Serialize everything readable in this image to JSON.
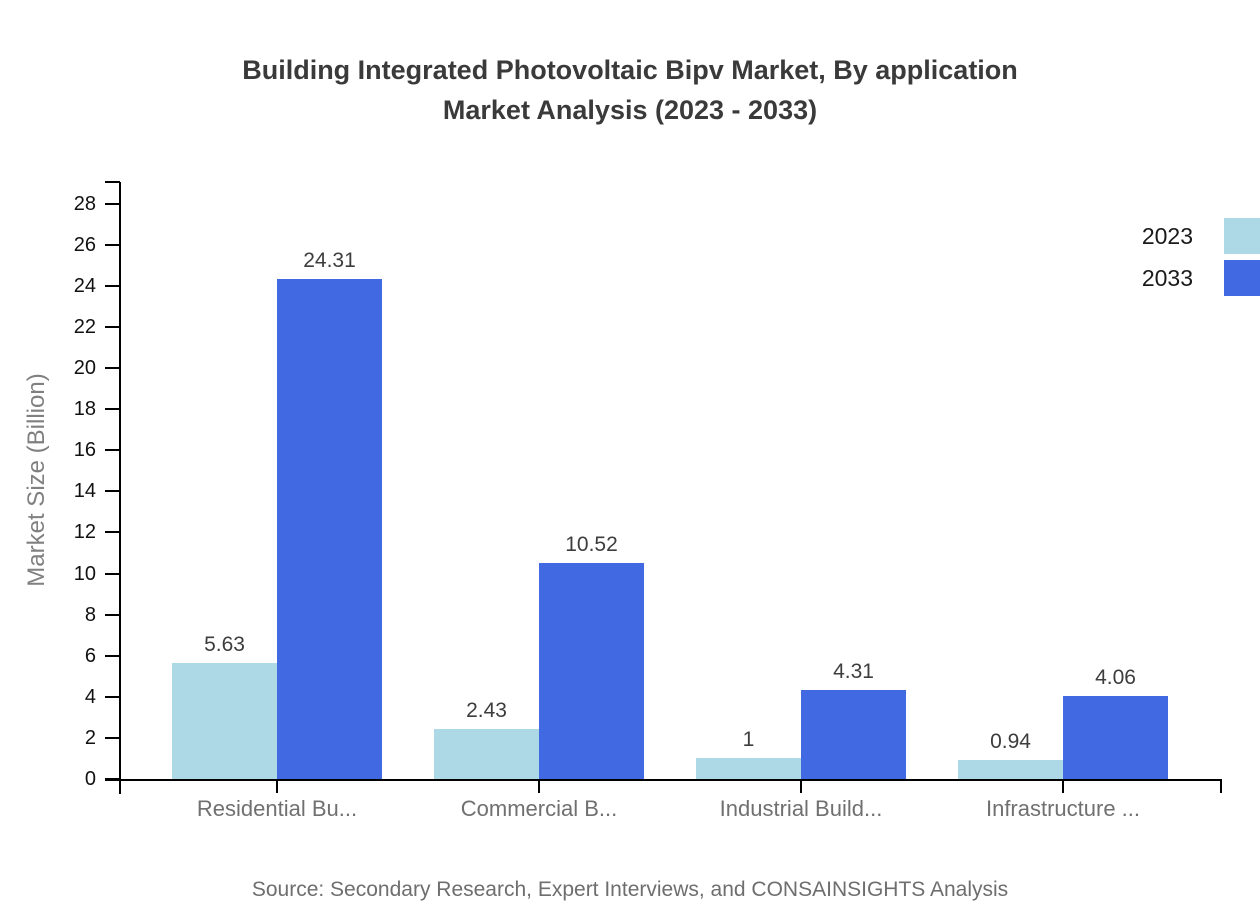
{
  "title": {
    "line1": "Building Integrated Photovoltaic Bipv Market, By application",
    "line2": "Market Analysis (2023 - 2033)"
  },
  "source_note": "Source: Secondary Research, Expert Interviews, and CONSAINSIGHTS Analysis",
  "chart_data": {
    "type": "bar",
    "title": "Building Integrated Photovoltaic Bipv Market, By application Market Analysis (2023 - 2033)",
    "categories": [
      "Residential Bu...",
      "Commercial B...",
      "Industrial Build...",
      "Infrastructure ..."
    ],
    "series": [
      {
        "name": "2023",
        "color": "#add8e6",
        "values": [
          5.63,
          2.43,
          1,
          0.94
        ]
      },
      {
        "name": "2033",
        "color": "#4169e1",
        "values": [
          24.31,
          10.52,
          4.31,
          4.06
        ]
      }
    ],
    "xlabel": "",
    "ylabel": "Market Size (Billion)",
    "ylim": [
      0,
      29
    ],
    "yticks": [
      0,
      2,
      4,
      6,
      8,
      10,
      12,
      14,
      16,
      18,
      20,
      22,
      24,
      26,
      28
    ],
    "grid": false,
    "legend_position": "top-right",
    "bar_value_labels": true
  },
  "colors": {
    "series_2023": "#add8e6",
    "series_2033": "#4169e1",
    "title_text": "#3a3a3a",
    "axis": "#000000",
    "tick_label": "#111111",
    "category_label": "#707070",
    "axis_title": "#808080",
    "value_label": "#3d3d3d",
    "source_text": "#6e6e6e",
    "background": "#ffffff"
  }
}
